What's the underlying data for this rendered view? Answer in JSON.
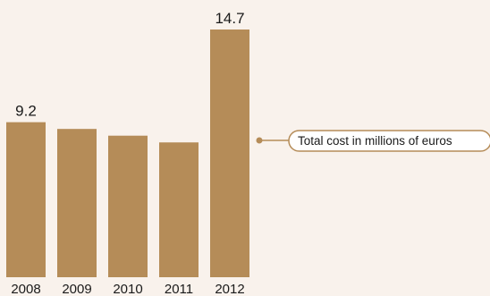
{
  "chart_data": {
    "type": "bar",
    "categories": [
      "2008",
      "2009",
      "2010",
      "2011",
      "2012"
    ],
    "values": [
      9.2,
      8.8,
      8.4,
      8.0,
      14.7
    ],
    "value_labels": [
      "9.2",
      "",
      "",
      "",
      "14.7"
    ],
    "title": "",
    "xlabel": "",
    "ylabel": "",
    "ylim": [
      0,
      14.7
    ],
    "grid": false,
    "annotation": "Total cost in millions of euros",
    "colors": {
      "bar": "#b58c58",
      "background": "#f9f2ec",
      "annotation_line": "#b58c58"
    }
  }
}
